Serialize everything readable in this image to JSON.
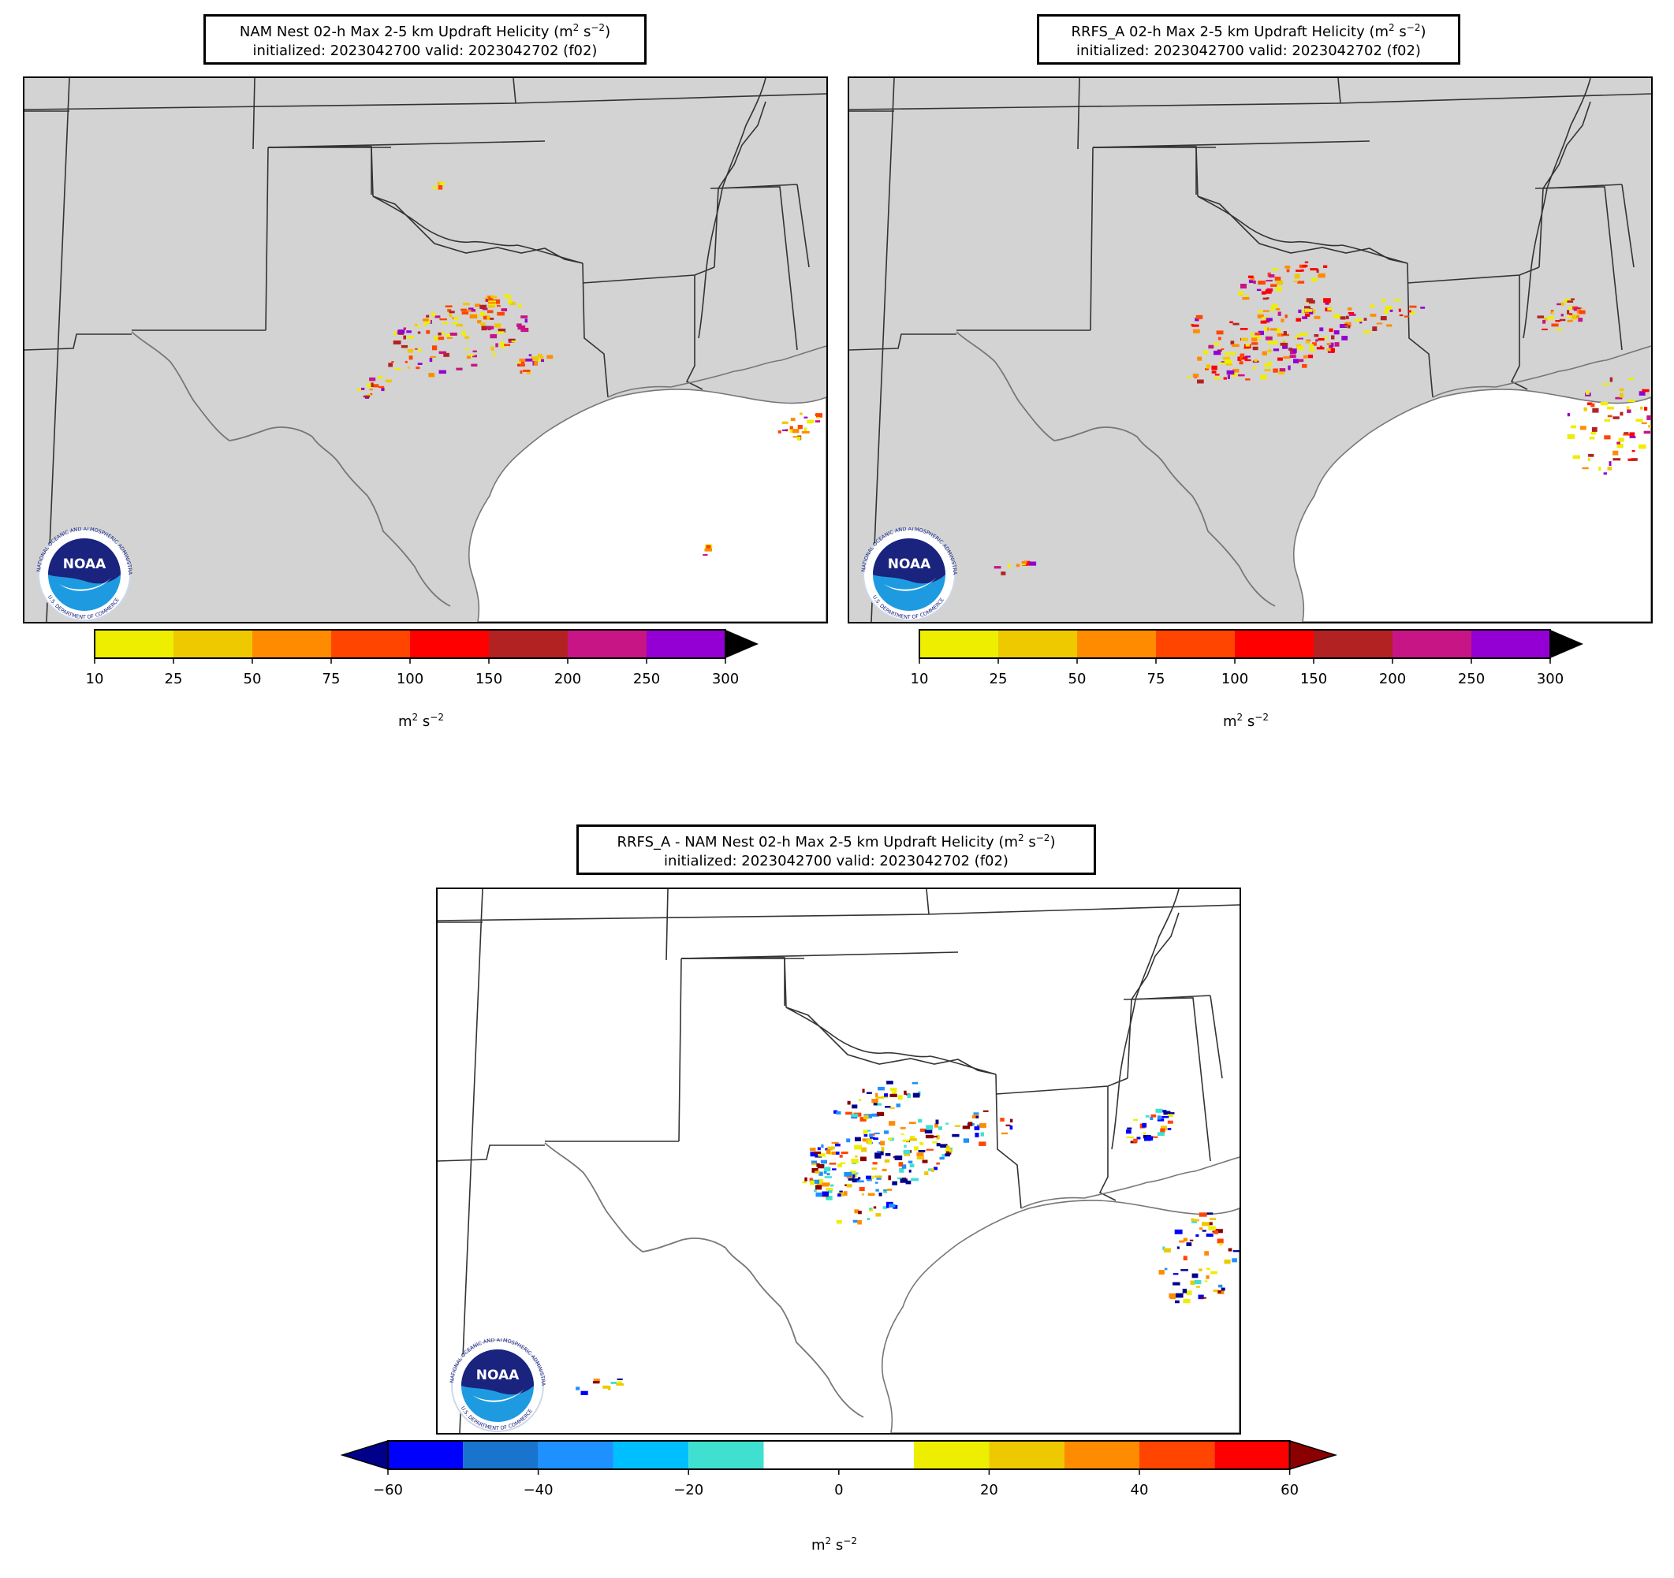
{
  "panels": [
    {
      "id": "nam",
      "title_line1_prefix": "NAM Nest 02-h Max 2-5 km Updraft Helicity (m",
      "title_line1_suffix": ")",
      "title_line2": "initialized: 2023042700 valid: 2023042702 (f02)",
      "units_prefix": "m",
      "colorbar": {
        "ticks": [
          "10",
          "25",
          "50",
          "75",
          "100",
          "150",
          "200",
          "250",
          "300"
        ],
        "colors": [
          "#eeee00",
          "#eec900",
          "#ff8c00",
          "#ff4500",
          "#ff0000",
          "#b22222",
          "#c71585",
          "#9400d3"
        ],
        "extend_color": "#000000"
      }
    },
    {
      "id": "rrfs",
      "title_line1_prefix": "RRFS_A 02-h Max 2-5 km Updraft Helicity (m",
      "title_line1_suffix": ")",
      "title_line2": "initialized: 2023042700 valid: 2023042702 (f02)",
      "units_prefix": "m",
      "colorbar": {
        "ticks": [
          "10",
          "25",
          "50",
          "75",
          "100",
          "150",
          "200",
          "250",
          "300"
        ],
        "colors": [
          "#eeee00",
          "#eec900",
          "#ff8c00",
          "#ff4500",
          "#ff0000",
          "#b22222",
          "#c71585",
          "#9400d3"
        ],
        "extend_color": "#000000"
      }
    },
    {
      "id": "diff",
      "title_line1_prefix": "RRFS_A - NAM Nest 02-h Max 2-5 km Updraft Helicity (m",
      "title_line1_suffix": ")",
      "title_line2": "initialized: 2023042700 valid: 2023042702 (f02)",
      "units_prefix": "m",
      "colorbar": {
        "ticks": [
          "−60",
          "",
          "−40",
          "",
          "−20",
          "",
          "0",
          "",
          "20",
          "",
          "40",
          "",
          "60"
        ],
        "colors": [
          "#0000ff",
          "#1874cd",
          "#1e90ff",
          "#00bfff",
          "#40e0d0",
          "#ffffff",
          "#ffffff",
          "#eeee00",
          "#eec900",
          "#ff8c00",
          "#ff4500",
          "#ff0000"
        ],
        "extend_low_color": "#00008b",
        "extend_high_color": "#8b0000"
      }
    }
  ],
  "units_exp_a": "2",
  "units_mid": " s",
  "units_exp_b": "−2",
  "colors": {
    "land": "#d3d3d3",
    "water": "#ffffff",
    "border": "#333333",
    "coast": "#777777",
    "noaa_dark": "#1a237e",
    "noaa_light": "#1e9be0"
  },
  "logo": {
    "name": "NOAA",
    "ring_text": "NATIONAL OCEANIC AND ATMOSPHERIC ADMINISTRATION",
    "ring_text_bottom": "U.S. DEPARTMENT OF COMMERCE"
  }
}
